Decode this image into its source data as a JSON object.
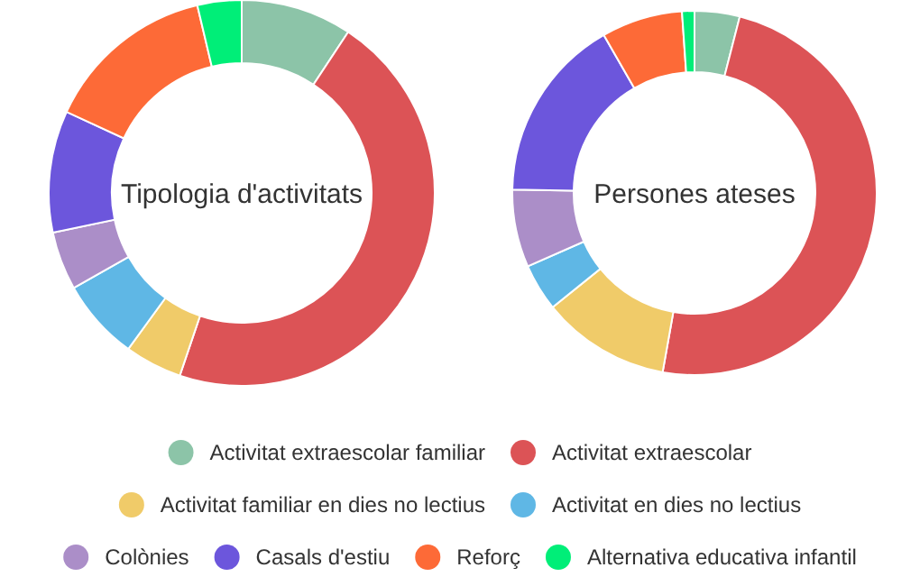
{
  "chart_data": [
    {
      "type": "donut",
      "title": "Tipologia d'activitats",
      "categories": [
        "Activitat extraescolar familiar",
        "Activitat extraescolar",
        "Activitat familiar en dies no lectius",
        "Activitat en dies no lectius",
        "Colònies",
        "Casals d'estiu",
        "Reforç",
        "Alternativa educativa infantil"
      ],
      "values": [
        9.3,
        45.9,
        4.8,
        6.8,
        4.9,
        10.2,
        14.4,
        3.7
      ],
      "colors": [
        "#8cc4a8",
        "#dc5356",
        "#f0cb69",
        "#5fb7e5",
        "#ab8ec8",
        "#6c56dc",
        "#fd6a37",
        "#00ee78"
      ],
      "legend": "bottom"
    },
    {
      "type": "donut",
      "title": "Persones ateses",
      "categories": [
        null,
        null,
        null,
        null,
        null,
        null,
        null,
        null
      ],
      "values": [
        4.0,
        48.8,
        11.4,
        4.2,
        6.9,
        16.4,
        7.2,
        1.1
      ],
      "colors": [
        "#8cc4a8",
        "#dc5356",
        "#f0cb69",
        "#5fb7e5",
        "#ab8ec8",
        "#6c56dc",
        "#fd6a37",
        "#00ee78"
      ]
    }
  ]
}
